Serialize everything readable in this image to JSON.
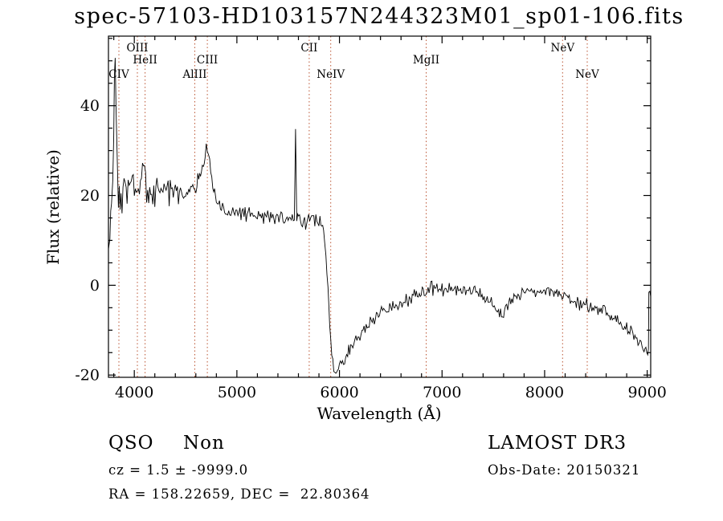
{
  "title": "spec-57103-HD103157N244323M01_sp01-106.fits",
  "chart_data": {
    "type": "line",
    "title": "spec-57103-HD103157N244323M01_sp01-106.fits",
    "xlabel": "Wavelength (Å)",
    "ylabel": "Flux (relative)",
    "xlim": [
      3748,
      9034
    ],
    "ylim": [
      -20.5,
      55.5
    ],
    "x_ticks": [
      4000,
      5000,
      6000,
      7000,
      8000,
      9000
    ],
    "x_minor_step": 200,
    "y_ticks": [
      -20,
      0,
      20,
      40
    ],
    "y_minor_step": 5,
    "grid": false,
    "legend": "none",
    "line_color": "#000000",
    "emission_marker_color": "#bb5533",
    "emission_lines": [
      {
        "label": "CIV",
        "wavelength": 3850,
        "row": 2
      },
      {
        "label": "OIII",
        "wavelength": 4030,
        "row": 0
      },
      {
        "label": "HeII",
        "wavelength": 4105,
        "row": 1
      },
      {
        "label": "AlIII",
        "wavelength": 4590,
        "row": 2
      },
      {
        "label": "CIII",
        "wavelength": 4712,
        "row": 1
      },
      {
        "label": "CII",
        "wavelength": 5705,
        "row": 0
      },
      {
        "label": "NeIV",
        "wavelength": 5915,
        "row": 2
      },
      {
        "label": "MgII",
        "wavelength": 6845,
        "row": 1
      },
      {
        "label": "NeV",
        "wavelength": 8175,
        "row": 0
      },
      {
        "label": "NeV",
        "wavelength": 8415,
        "row": 2
      }
    ],
    "spectrum_anchors": [
      [
        3748,
        9,
        2
      ],
      [
        3762,
        12,
        3
      ],
      [
        3778,
        16,
        4
      ],
      [
        3790,
        22,
        4
      ],
      [
        3800,
        34,
        3
      ],
      [
        3806,
        45,
        2
      ],
      [
        3814,
        52,
        2
      ],
      [
        3822,
        38,
        3
      ],
      [
        3832,
        26,
        4
      ],
      [
        3845,
        21,
        5
      ],
      [
        3870,
        20,
        5
      ],
      [
        3900,
        24,
        4.5
      ],
      [
        3940,
        20,
        4.5
      ],
      [
        3980,
        24,
        4
      ],
      [
        4020,
        21,
        4
      ],
      [
        4060,
        23,
        4
      ],
      [
        4090,
        28,
        3
      ],
      [
        4120,
        23,
        4
      ],
      [
        4160,
        20,
        3.5
      ],
      [
        4210,
        22,
        3
      ],
      [
        4260,
        20,
        3
      ],
      [
        4310,
        22.5,
        3
      ],
      [
        4360,
        20.5,
        3
      ],
      [
        4410,
        21.5,
        2.8
      ],
      [
        4460,
        20.5,
        2.6
      ],
      [
        4510,
        21,
        2.4
      ],
      [
        4560,
        21.5,
        2.2
      ],
      [
        4610,
        22.5,
        2
      ],
      [
        4655,
        25,
        2
      ],
      [
        4690,
        29,
        1.8
      ],
      [
        4712,
        30.5,
        1.6
      ],
      [
        4735,
        27,
        1.8
      ],
      [
        4765,
        21.5,
        1.8
      ],
      [
        4800,
        18.5,
        1.8
      ],
      [
        4850,
        17,
        1.8
      ],
      [
        4920,
        16.5,
        1.8
      ],
      [
        5000,
        16.5,
        1.8
      ],
      [
        5080,
        16,
        1.8
      ],
      [
        5160,
        15.5,
        1.8
      ],
      [
        5240,
        15.5,
        1.8
      ],
      [
        5320,
        15,
        1.8
      ],
      [
        5400,
        15,
        1.8
      ],
      [
        5480,
        14.5,
        1.8
      ],
      [
        5540,
        15,
        1.5
      ],
      [
        5560,
        15,
        1
      ],
      [
        5572,
        35,
        0.6
      ],
      [
        5584,
        15,
        1
      ],
      [
        5620,
        14.5,
        1.8
      ],
      [
        5700,
        15,
        1.8
      ],
      [
        5760,
        14.5,
        1.8
      ],
      [
        5810,
        14,
        1.8
      ],
      [
        5845,
        12,
        1.5
      ],
      [
        5868,
        7,
        1.5
      ],
      [
        5888,
        0,
        1.2
      ],
      [
        5905,
        -8,
        1.2
      ],
      [
        5925,
        -15,
        1
      ],
      [
        5945,
        -19,
        0.8
      ],
      [
        5965,
        -20,
        0.7
      ],
      [
        5990,
        -18.5,
        0.9
      ],
      [
        6020,
        -17,
        1.2
      ],
      [
        6060,
        -15.5,
        1.4
      ],
      [
        6110,
        -13.5,
        1.4
      ],
      [
        6160,
        -12.5,
        1.4
      ],
      [
        6220,
        -10.5,
        1.4
      ],
      [
        6290,
        -8.5,
        1.4
      ],
      [
        6360,
        -7,
        1.4
      ],
      [
        6440,
        -5.5,
        1.4
      ],
      [
        6520,
        -4.5,
        1.4
      ],
      [
        6600,
        -4,
        1.4
      ],
      [
        6680,
        -3,
        1.4
      ],
      [
        6760,
        -2,
        1.4
      ],
      [
        6845,
        -1,
        1.4
      ],
      [
        6920,
        -0.5,
        1.4
      ],
      [
        7000,
        -1.5,
        1.4
      ],
      [
        7080,
        -1,
        1.3
      ],
      [
        7160,
        -1.5,
        1.3
      ],
      [
        7240,
        -1,
        1.3
      ],
      [
        7320,
        -1.5,
        1.3
      ],
      [
        7400,
        -2.5,
        1.3
      ],
      [
        7480,
        -3.5,
        1.3
      ],
      [
        7560,
        -6,
        1.3
      ],
      [
        7590,
        -7.5,
        1.2
      ],
      [
        7630,
        -5,
        1.2
      ],
      [
        7700,
        -3,
        1.3
      ],
      [
        7780,
        -1.5,
        1.3
      ],
      [
        7860,
        -1,
        1.3
      ],
      [
        7940,
        -1.5,
        1.3
      ],
      [
        8020,
        -1,
        1.3
      ],
      [
        8100,
        -1.5,
        1.3
      ],
      [
        8180,
        -2,
        1.3
      ],
      [
        8260,
        -3,
        1.3
      ],
      [
        8340,
        -4,
        1.3
      ],
      [
        8420,
        -4.5,
        1.3
      ],
      [
        8500,
        -5.5,
        1.3
      ],
      [
        8580,
        -6,
        1.3
      ],
      [
        8660,
        -7,
        1.3
      ],
      [
        8740,
        -8.5,
        1.3
      ],
      [
        8820,
        -10,
        1.3
      ],
      [
        8900,
        -12,
        1.3
      ],
      [
        8960,
        -13.5,
        1.2
      ],
      [
        9005,
        -15,
        1
      ],
      [
        9012,
        -14.5,
        0.5
      ],
      [
        9016,
        -1.5,
        0.4
      ],
      [
        9034,
        -2.5,
        0.8
      ]
    ],
    "noise_seed": 20150321,
    "sample_step": 10
  },
  "annotations": {
    "class_label": "QSO",
    "subclass_label": "Non",
    "survey_label": "LAMOST DR3",
    "cz_text": "cz = 1.5 ± -9999.0",
    "obs_date_text": "Obs-Date: 20150321",
    "ra_dec_text": "RA = 158.22659, DEC =  22.80364"
  }
}
